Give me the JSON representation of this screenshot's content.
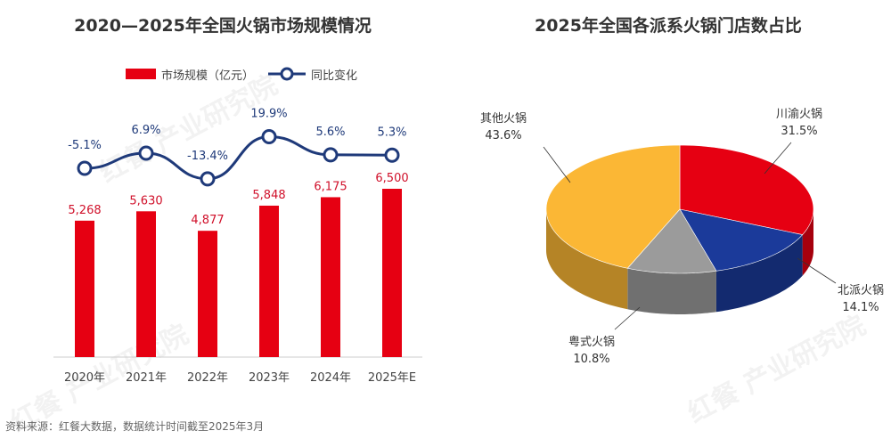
{
  "chart_data": [
    {
      "type": "bar+line",
      "title": "2020—2025年全国火锅市场规模情况",
      "categories": [
        "2020年",
        "2021年",
        "2022年",
        "2023年",
        "2024年",
        "2025年E"
      ],
      "series": [
        {
          "name": "市场规模（亿元）",
          "type": "bar",
          "color": "#E60012",
          "values": [
            5268,
            5630,
            4877,
            5848,
            6175,
            6500
          ],
          "labels": [
            "5,268",
            "5,630",
            "4,877",
            "5,848",
            "6,175",
            "6,500"
          ]
        },
        {
          "name": "同比变化",
          "type": "line",
          "color": "#1F3A7A",
          "values": [
            -5.1,
            6.9,
            -13.4,
            19.9,
            5.6,
            5.3
          ],
          "labels": [
            "-5.1%",
            "6.9%",
            "-13.4%",
            "19.9%",
            "5.6%",
            "5.3%"
          ]
        }
      ],
      "legend": "top"
    },
    {
      "type": "pie",
      "title": "2025年全国各派系火锅门店数占比",
      "slices": [
        {
          "name": "川渝火锅",
          "value": 31.5,
          "label": "31.5%",
          "color": "#E60012"
        },
        {
          "name": "北派火锅",
          "value": 14.1,
          "label": "14.1%",
          "color": "#1B3A9A"
        },
        {
          "name": "粤式火锅",
          "value": 10.8,
          "label": "10.8%",
          "color": "#9B9B9B"
        },
        {
          "name": "其他火锅",
          "value": 43.6,
          "label": "43.6%",
          "color": "#FBB735"
        }
      ],
      "style": "3d"
    }
  ],
  "footer": "资料来源：红餐大数据，数据统计时间截至2025年3月",
  "watermark": "红餐 产业研究院"
}
